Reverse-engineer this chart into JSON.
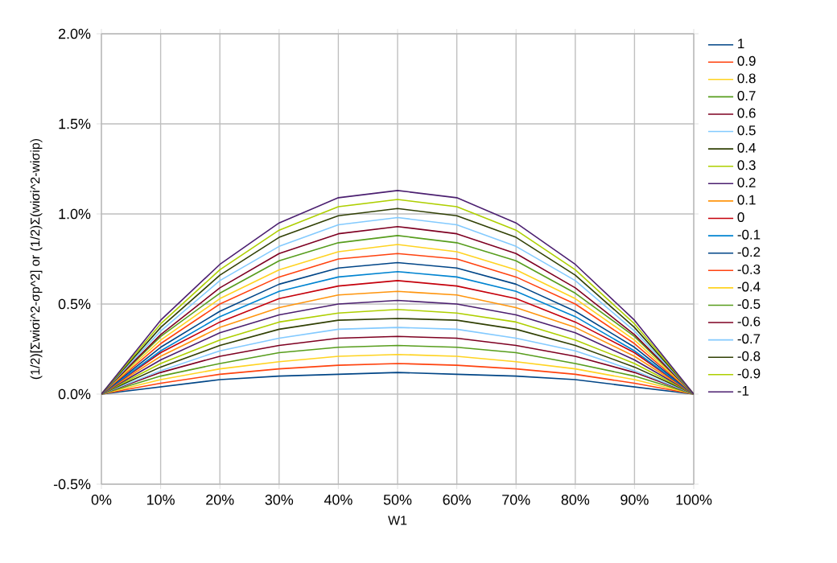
{
  "chart_data": {
    "type": "line",
    "xlabel": "W1",
    "ylabel": "(1/2)[Σwiσi^2-σp^2] or (1/2)Σ(wiσi^2-wiσip)",
    "x": [
      0,
      10,
      20,
      30,
      40,
      50,
      60,
      70,
      80,
      90,
      100
    ],
    "xlim": [
      0,
      100
    ],
    "xticks": [
      {
        "value": 0,
        "label": "0%"
      },
      {
        "value": 10,
        "label": "10%"
      },
      {
        "value": 20,
        "label": "20%"
      },
      {
        "value": 30,
        "label": "30%"
      },
      {
        "value": 40,
        "label": "40%"
      },
      {
        "value": 50,
        "label": "50%"
      },
      {
        "value": 60,
        "label": "60%"
      },
      {
        "value": 70,
        "label": "70%"
      },
      {
        "value": 80,
        "label": "80%"
      },
      {
        "value": 90,
        "label": "90%"
      },
      {
        "value": 100,
        "label": "100%"
      }
    ],
    "ylim": [
      -0.5,
      2.0
    ],
    "yticks": [
      {
        "value": -0.5,
        "label": "-0.5%"
      },
      {
        "value": 0,
        "label": "0.0%"
      },
      {
        "value": 0.5,
        "label": "0.5%"
      },
      {
        "value": 1.0,
        "label": "1.0%"
      },
      {
        "value": 1.5,
        "label": "1.5%"
      },
      {
        "value": 2.0,
        "label": "2.0%"
      }
    ],
    "grid": true,
    "legend": "right",
    "marker": "none",
    "line_style": "solid",
    "series": [
      {
        "name": "1",
        "color": "#004586",
        "values": [
          0,
          0.04,
          0.08,
          0.1,
          0.11,
          0.12,
          0.11,
          0.1,
          0.08,
          0.04,
          0
        ]
      },
      {
        "name": "0.9",
        "color": "#ff420e",
        "values": [
          0,
          0.06,
          0.11,
          0.14,
          0.16,
          0.17,
          0.16,
          0.14,
          0.11,
          0.06,
          0
        ]
      },
      {
        "name": "0.8",
        "color": "#ffd320",
        "values": [
          0,
          0.08,
          0.14,
          0.18,
          0.21,
          0.22,
          0.21,
          0.18,
          0.14,
          0.08,
          0
        ]
      },
      {
        "name": "0.7",
        "color": "#579d1c",
        "values": [
          0,
          0.1,
          0.17,
          0.23,
          0.26,
          0.27,
          0.26,
          0.23,
          0.17,
          0.1,
          0
        ]
      },
      {
        "name": "0.6",
        "color": "#7e0021",
        "values": [
          0,
          0.12,
          0.21,
          0.27,
          0.31,
          0.32,
          0.31,
          0.27,
          0.21,
          0.12,
          0
        ]
      },
      {
        "name": "0.5",
        "color": "#83caff",
        "values": [
          0,
          0.13,
          0.24,
          0.31,
          0.36,
          0.37,
          0.36,
          0.31,
          0.24,
          0.13,
          0
        ]
      },
      {
        "name": "0.4",
        "color": "#314004",
        "values": [
          0,
          0.15,
          0.27,
          0.36,
          0.41,
          0.42,
          0.41,
          0.36,
          0.27,
          0.15,
          0
        ]
      },
      {
        "name": "0.3",
        "color": "#aecf00",
        "values": [
          0,
          0.17,
          0.3,
          0.4,
          0.45,
          0.47,
          0.45,
          0.4,
          0.3,
          0.17,
          0
        ]
      },
      {
        "name": "0.2",
        "color": "#4b1f6f",
        "values": [
          0,
          0.19,
          0.34,
          0.44,
          0.5,
          0.52,
          0.5,
          0.44,
          0.34,
          0.19,
          0
        ]
      },
      {
        "name": "0.1",
        "color": "#ff950e",
        "values": [
          0,
          0.21,
          0.37,
          0.48,
          0.55,
          0.57,
          0.55,
          0.48,
          0.37,
          0.21,
          0
        ]
      },
      {
        "name": "0",
        "color": "#c5000b",
        "values": [
          0,
          0.23,
          0.4,
          0.53,
          0.6,
          0.63,
          0.6,
          0.53,
          0.4,
          0.23,
          0
        ]
      },
      {
        "name": "-0.1",
        "color": "#0084d1",
        "values": [
          0,
          0.24,
          0.43,
          0.57,
          0.65,
          0.68,
          0.65,
          0.57,
          0.43,
          0.24,
          0
        ]
      },
      {
        "name": "-0.2",
        "color": "#004587",
        "values": [
          0,
          0.26,
          0.46,
          0.61,
          0.7,
          0.73,
          0.7,
          0.61,
          0.46,
          0.26,
          0
        ]
      },
      {
        "name": "-0.3",
        "color": "#ff420f",
        "values": [
          0,
          0.28,
          0.5,
          0.65,
          0.75,
          0.78,
          0.75,
          0.65,
          0.5,
          0.28,
          0
        ]
      },
      {
        "name": "-0.4",
        "color": "#ffd321",
        "values": [
          0,
          0.3,
          0.53,
          0.69,
          0.79,
          0.83,
          0.79,
          0.69,
          0.53,
          0.3,
          0
        ]
      },
      {
        "name": "-0.5",
        "color": "#579d1d",
        "values": [
          0,
          0.32,
          0.56,
          0.74,
          0.84,
          0.88,
          0.84,
          0.74,
          0.56,
          0.32,
          0
        ]
      },
      {
        "name": "-0.6",
        "color": "#7e0022",
        "values": [
          0,
          0.33,
          0.59,
          0.78,
          0.89,
          0.93,
          0.89,
          0.78,
          0.59,
          0.33,
          0
        ]
      },
      {
        "name": "-0.7",
        "color": "#83cafe",
        "values": [
          0,
          0.35,
          0.63,
          0.82,
          0.94,
          0.98,
          0.94,
          0.82,
          0.63,
          0.35,
          0
        ]
      },
      {
        "name": "-0.8",
        "color": "#314005",
        "values": [
          0,
          0.37,
          0.66,
          0.87,
          0.99,
          1.03,
          0.99,
          0.87,
          0.66,
          0.37,
          0
        ]
      },
      {
        "name": "-0.9",
        "color": "#aecf01",
        "values": [
          0,
          0.39,
          0.69,
          0.91,
          1.04,
          1.08,
          1.04,
          0.91,
          0.69,
          0.39,
          0
        ]
      },
      {
        "name": "-1",
        "color": "#4b1f70",
        "values": [
          0,
          0.41,
          0.72,
          0.95,
          1.09,
          1.13,
          1.09,
          0.95,
          0.72,
          0.41,
          0
        ]
      }
    ]
  }
}
